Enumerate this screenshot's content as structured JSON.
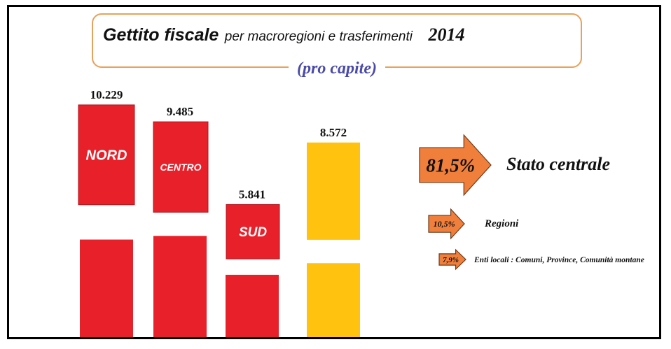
{
  "title": {
    "bold": "Gettito fiscale",
    "rest": "per macroregioni e trasferimenti",
    "year": "2014",
    "subtitle": "(pro capite)"
  },
  "chart_data": {
    "type": "bar",
    "title": "Gettito fiscale per macroregioni e trasferimenti 2014",
    "subtitle": "(pro capite)",
    "categories": [
      "NORD",
      "CENTRO",
      "SUD",
      ""
    ],
    "values": [
      10229,
      9485,
      5841,
      8572
    ],
    "value_labels": [
      "10.229",
      "9.485",
      "5.841",
      "8.572"
    ],
    "colors": [
      "#e8202a",
      "#e8202a",
      "#e8202a",
      "#ffc20e"
    ],
    "grid": false,
    "legend": "none"
  },
  "transfers": [
    {
      "percent": "81,5%",
      "label": "Stato centrale"
    },
    {
      "percent": "10,5%",
      "label": "Regioni"
    },
    {
      "percent": "7,9%",
      "label": "Enti locali : Comuni, Province, Comunità montane"
    }
  ],
  "colors": {
    "bar_red": "#e8202a",
    "bar_yellow": "#ffc20e",
    "arrow_orange": "#f07f3c",
    "title_border": "#e8a15a",
    "subtitle": "#4a4aa8"
  }
}
